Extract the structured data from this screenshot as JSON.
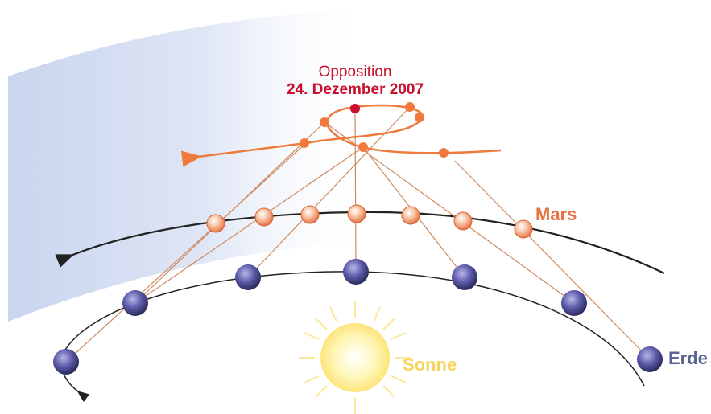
{
  "labels": {
    "opposition": "Opposition",
    "date": "24. Dezember 2007",
    "mars": "Mars",
    "sun": "Sonne",
    "earth": "Erde"
  }
}
